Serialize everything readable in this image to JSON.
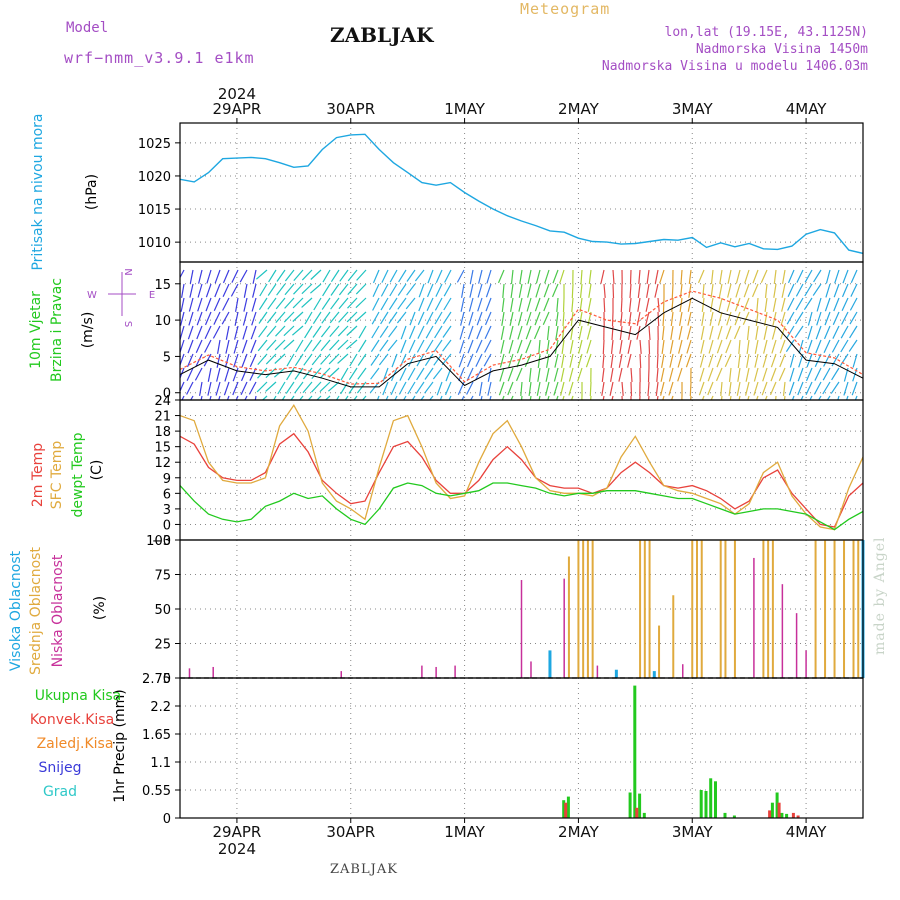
{
  "header": {
    "model_label": "Model",
    "model_name": "wrf−nmm_v3.9.1  e1km",
    "station": "ZABLJAK",
    "product": "Meteogram",
    "location_lines": [
      "lon,lat (19.15E, 43.1125N)",
      "Nadmorska Visina 1450m",
      "Nadmorska Visina u modelu 1406.03m"
    ]
  },
  "footer": {
    "station": "ZABLJAK",
    "watermark": "made by Angel"
  },
  "time_axis": {
    "year": "2024",
    "dates": [
      "29APR",
      "30APR",
      "1MAY",
      "2MAY",
      "3MAY",
      "4MAY"
    ],
    "start": "2024-04-28 12:00",
    "end": "2024-05-04 12:00"
  },
  "colors": {
    "pressure": "#1ea7e1",
    "temp_2m": "#e8423c",
    "sfc_temp": "#e0aa3e",
    "dewpt": "#22c91e",
    "cloud_high": "#1ea7e1",
    "cloud_mid": "#e0aa3e",
    "cloud_low": "#c7309a",
    "precip_total": "#22c91e",
    "precip_conv": "#e8423c",
    "precip_frozen": "#f08a28",
    "snow": "#3a3ad8",
    "grad": "#2fc8c8"
  },
  "chart_data": [
    {
      "type": "line",
      "panel": "pressure",
      "ylabel_lines": [
        "Pritisak na nivou mora",
        "(hPa)"
      ],
      "yticks": [
        "1010",
        "1015",
        "1020",
        "1025"
      ],
      "ylim": [
        1007,
        1028
      ],
      "x": [
        "2024-04-28 12:00",
        "2024-04-28 15:00",
        "2024-04-28 18:00",
        "2024-04-28 21:00",
        "2024-04-29 00:00",
        "2024-04-29 03:00",
        "2024-04-29 06:00",
        "2024-04-29 09:00",
        "2024-04-29 12:00",
        "2024-04-29 15:00",
        "2024-04-29 18:00",
        "2024-04-29 21:00",
        "2024-04-30 00:00",
        "2024-04-30 03:00",
        "2024-04-30 06:00",
        "2024-04-30 09:00",
        "2024-04-30 12:00",
        "2024-04-30 15:00",
        "2024-04-30 18:00",
        "2024-04-30 21:00",
        "2024-05-01 00:00",
        "2024-05-01 03:00",
        "2024-05-01 06:00",
        "2024-05-01 09:00",
        "2024-05-01 12:00",
        "2024-05-01 15:00",
        "2024-05-01 18:00",
        "2024-05-01 21:00",
        "2024-05-02 00:00",
        "2024-05-02 03:00",
        "2024-05-02 06:00",
        "2024-05-02 09:00",
        "2024-05-02 12:00",
        "2024-05-02 15:00",
        "2024-05-02 18:00",
        "2024-05-02 21:00",
        "2024-05-03 00:00",
        "2024-05-03 03:00",
        "2024-05-03 06:00",
        "2024-05-03 09:00",
        "2024-05-03 12:00",
        "2024-05-03 15:00",
        "2024-05-03 18:00",
        "2024-05-03 21:00",
        "2024-05-04 00:00",
        "2024-05-04 03:00",
        "2024-05-04 06:00",
        "2024-05-04 09:00",
        "2024-05-04 12:00"
      ],
      "series": [
        {
          "values": [
            1019.5,
            1019.1,
            1020.5,
            1022.6,
            1022.7,
            1022.8,
            1022.6,
            1022.0,
            1021.3,
            1021.5,
            1024.0,
            1025.8,
            1026.2,
            1026.3,
            1024.0,
            1022.0,
            1020.5,
            1019.0,
            1018.6,
            1019.0,
            1017.5,
            1016.2,
            1015.0,
            1014.0,
            1013.2,
            1012.5,
            1011.7,
            1011.5,
            1010.6,
            1010.1,
            1010.0,
            1009.7,
            1009.8,
            1010.1,
            1010.4,
            1010.3,
            1010.7,
            1009.2,
            1009.9,
            1009.3,
            1009.8,
            1009.0,
            1008.9,
            1009.4,
            1011.2,
            1011.9,
            1011.4,
            1008.8,
            1008.3
          ]
        }
      ]
    },
    {
      "type": "line",
      "panel": "wind",
      "ylabel_lines": [
        "10m Vjetar",
        "Brzina i Pravac",
        "(m/s)"
      ],
      "compass": [
        "N",
        "W",
        "E",
        "S"
      ],
      "yticks": [
        "0",
        "5",
        "10",
        "15"
      ],
      "ylim": [
        -1,
        18
      ],
      "x": [
        "2024-04-28 12:00",
        "2024-04-28 18:00",
        "2024-04-29 00:00",
        "2024-04-29 06:00",
        "2024-04-29 12:00",
        "2024-04-29 18:00",
        "2024-04-30 00:00",
        "2024-04-30 06:00",
        "2024-04-30 12:00",
        "2024-04-30 18:00",
        "2024-05-01 00:00",
        "2024-05-01 06:00",
        "2024-05-01 12:00",
        "2024-05-01 18:00",
        "2024-05-02 00:00",
        "2024-05-02 06:00",
        "2024-05-02 12:00",
        "2024-05-02 18:00",
        "2024-05-03 00:00",
        "2024-05-03 06:00",
        "2024-05-03 12:00",
        "2024-05-03 18:00",
        "2024-05-04 00:00",
        "2024-05-04 06:00",
        "2024-05-04 12:00"
      ],
      "series": [
        {
          "values": [
            2.5,
            4.5,
            3.0,
            2.5,
            3.0,
            2.0,
            0.8,
            0.8,
            4.0,
            5.0,
            1.0,
            3.0,
            3.8,
            5.0,
            10.0,
            9.0,
            8.0,
            11.0,
            13.0,
            11.0,
            10.0,
            9.0,
            4.5,
            4.0,
            2.0
          ]
        },
        {
          "values": [
            3.2,
            5.2,
            3.6,
            3.0,
            3.5,
            2.6,
            1.2,
            1.3,
            4.6,
            5.8,
            1.5,
            3.8,
            4.6,
            6.0,
            11.5,
            10.0,
            9.5,
            12.5,
            14.0,
            13.0,
            11.5,
            10.0,
            5.5,
            4.8,
            2.5
          ]
        }
      ]
    },
    {
      "type": "line",
      "panel": "temperature",
      "ylabel_lines": [
        "2m Temp",
        "SFC Temp",
        "dewpt Temp",
        "(C)"
      ],
      "yticks": [
        "−3",
        "0",
        "3",
        "6",
        "9",
        "12",
        "15",
        "18",
        "21",
        "24"
      ],
      "ylim": [
        -3,
        24
      ],
      "x": [
        "2024-04-28 12:00",
        "2024-04-28 15:00",
        "2024-04-28 18:00",
        "2024-04-28 21:00",
        "2024-04-29 00:00",
        "2024-04-29 03:00",
        "2024-04-29 06:00",
        "2024-04-29 09:00",
        "2024-04-29 12:00",
        "2024-04-29 15:00",
        "2024-04-29 18:00",
        "2024-04-29 21:00",
        "2024-04-30 00:00",
        "2024-04-30 03:00",
        "2024-04-30 06:00",
        "2024-04-30 09:00",
        "2024-04-30 12:00",
        "2024-04-30 15:00",
        "2024-04-30 18:00",
        "2024-04-30 21:00",
        "2024-05-01 00:00",
        "2024-05-01 03:00",
        "2024-05-01 06:00",
        "2024-05-01 09:00",
        "2024-05-01 12:00",
        "2024-05-01 15:00",
        "2024-05-01 18:00",
        "2024-05-01 21:00",
        "2024-05-02 00:00",
        "2024-05-02 03:00",
        "2024-05-02 06:00",
        "2024-05-02 09:00",
        "2024-05-02 12:00",
        "2024-05-02 15:00",
        "2024-05-02 18:00",
        "2024-05-02 21:00",
        "2024-05-03 00:00",
        "2024-05-03 03:00",
        "2024-05-03 06:00",
        "2024-05-03 09:00",
        "2024-05-03 12:00",
        "2024-05-03 15:00",
        "2024-05-03 18:00",
        "2024-05-03 21:00",
        "2024-05-04 00:00",
        "2024-05-04 03:00",
        "2024-05-04 06:00",
        "2024-05-04 09:00",
        "2024-05-04 12:00"
      ],
      "series": [
        {
          "values": [
            17.0,
            15.5,
            11.0,
            9.0,
            8.5,
            8.5,
            10.0,
            15.5,
            17.5,
            14.0,
            8.5,
            6.0,
            4.0,
            4.5,
            10.0,
            15.0,
            16.0,
            13.0,
            8.5,
            6.0,
            6.0,
            8.5,
            12.5,
            15.0,
            12.5,
            9.0,
            7.5,
            7.0,
            7.0,
            6.0,
            7.0,
            10.0,
            12.0,
            10.0,
            7.5,
            7.0,
            7.5,
            6.5,
            5.0,
            3.0,
            4.5,
            9.0,
            10.5,
            6.0,
            3.0,
            0.0,
            -0.5,
            5.5,
            8.0
          ]
        },
        {
          "values": [
            21.0,
            20.0,
            12.0,
            8.5,
            8.0,
            8.0,
            9.0,
            19.0,
            23.0,
            18.0,
            8.0,
            4.5,
            3.0,
            1.0,
            11.0,
            20.0,
            21.0,
            15.0,
            8.0,
            5.0,
            5.5,
            12.0,
            17.5,
            20.0,
            15.0,
            9.0,
            6.5,
            6.0,
            6.0,
            5.5,
            7.0,
            13.0,
            17.0,
            12.0,
            7.5,
            6.5,
            6.0,
            5.0,
            4.0,
            2.0,
            4.0,
            10.0,
            12.0,
            5.5,
            2.0,
            -0.5,
            -1.0,
            7.0,
            13.0
          ]
        },
        {
          "values": [
            7.5,
            4.5,
            2.0,
            1.0,
            0.5,
            1.0,
            3.5,
            4.5,
            6.0,
            5.0,
            5.5,
            3.0,
            1.0,
            0.0,
            3.0,
            7.0,
            8.0,
            7.5,
            6.0,
            5.5,
            6.0,
            6.5,
            8.0,
            8.0,
            7.5,
            7.0,
            6.0,
            5.5,
            6.0,
            6.0,
            6.5,
            6.5,
            6.5,
            6.0,
            5.5,
            5.0,
            5.0,
            4.0,
            3.0,
            2.0,
            2.5,
            3.0,
            3.0,
            2.5,
            2.0,
            0.5,
            -1.0,
            1.0,
            2.5
          ]
        }
      ]
    },
    {
      "type": "bar",
      "panel": "clouds",
      "ylabel_lines": [
        "Visoka Oblacnost",
        "Srednja Oblacnost",
        "Niska  Oblacnost",
        "(%)"
      ],
      "yticks": [
        "0",
        "25",
        "50",
        "75",
        "100"
      ],
      "ylim": [
        0,
        100
      ],
      "series": [
        {
          "name": "Niska Oblacnost",
          "points": [
            [
              "2024-04-28 14:00",
              7
            ],
            [
              "2024-04-28 19:00",
              8
            ],
            [
              "2024-04-29 22:00",
              5
            ],
            [
              "2024-04-30 15:00",
              9
            ],
            [
              "2024-04-30 18:00",
              8
            ],
            [
              "2024-04-30 22:00",
              9
            ],
            [
              "2024-05-01 12:00",
              71
            ],
            [
              "2024-05-01 14:00",
              12
            ],
            [
              "2024-05-01 21:00",
              72
            ],
            [
              "2024-05-02 02:00",
              9
            ],
            [
              "2024-05-02 04:00",
              9
            ],
            [
              "2024-05-02 22:00",
              10
            ],
            [
              "2024-05-03 02:00",
              8
            ],
            [
              "2024-05-03 13:00",
              87
            ],
            [
              "2024-05-03 19:00",
              68
            ],
            [
              "2024-05-03 22:00",
              47
            ],
            [
              "2024-05-04 00:00",
              20
            ]
          ]
        },
        {
          "name": "Srednja Oblacnost",
          "points": [
            [
              "2024-05-01 22:00",
              88
            ],
            [
              "2024-05-02 00:00",
              100
            ],
            [
              "2024-05-02 01:00",
              100
            ],
            [
              "2024-05-02 02:00",
              100
            ],
            [
              "2024-05-02 03:00",
              100
            ],
            [
              "2024-05-02 13:00",
              100
            ],
            [
              "2024-05-02 14:00",
              100
            ],
            [
              "2024-05-02 15:00",
              100
            ],
            [
              "2024-05-02 17:00",
              38
            ],
            [
              "2024-05-02 20:00",
              60
            ],
            [
              "2024-05-03 00:00",
              100
            ],
            [
              "2024-05-03 01:00",
              100
            ],
            [
              "2024-05-03 02:00",
              100
            ],
            [
              "2024-05-03 06:00",
              100
            ],
            [
              "2024-05-03 07:00",
              100
            ],
            [
              "2024-05-03 09:00",
              100
            ],
            [
              "2024-05-03 15:00",
              100
            ],
            [
              "2024-05-03 16:00",
              100
            ],
            [
              "2024-05-03 17:00",
              100
            ],
            [
              "2024-05-04 02:00",
              100
            ],
            [
              "2024-05-04 04:00",
              100
            ],
            [
              "2024-05-04 06:00",
              100
            ],
            [
              "2024-05-04 08:00",
              100
            ],
            [
              "2024-05-04 10:00",
              100
            ],
            [
              "2024-05-04 11:00",
              100
            ],
            [
              "2024-05-04 12:00",
              100
            ]
          ]
        },
        {
          "name": "Visoka Oblacnost",
          "points": [
            [
              "2024-05-01 18:00",
              20
            ],
            [
              "2024-05-02 08:00",
              6
            ],
            [
              "2024-05-02 16:00",
              5
            ],
            [
              "2024-05-04 12:00",
              100
            ]
          ]
        }
      ]
    },
    {
      "type": "bar",
      "panel": "precipitation",
      "ylabel_lines": [
        "1hr Precip (mm)"
      ],
      "legend": [
        "Ukupna  Kisa",
        "Konvek.Kisa",
        "Zaledj.Kisa",
        "Snijeg",
        "Grad"
      ],
      "yticks": [
        "0",
        "0.55",
        "1.1",
        "1.65",
        "2.2",
        "2.75"
      ],
      "ylim": [
        0,
        2.75
      ],
      "series": [
        {
          "name": "Ukupna  Kisa",
          "points": [
            [
              "2024-05-01 21:00",
              0.35
            ],
            [
              "2024-05-01 22:00",
              0.42
            ],
            [
              "2024-05-02 11:00",
              0.5
            ],
            [
              "2024-05-02 12:00",
              2.6
            ],
            [
              "2024-05-02 13:00",
              0.48
            ],
            [
              "2024-05-02 14:00",
              0.1
            ],
            [
              "2024-05-03 02:00",
              0.55
            ],
            [
              "2024-05-03 03:00",
              0.53
            ],
            [
              "2024-05-03 04:00",
              0.78
            ],
            [
              "2024-05-03 05:00",
              0.72
            ],
            [
              "2024-05-03 07:00",
              0.1
            ],
            [
              "2024-05-03 09:00",
              0.05
            ],
            [
              "2024-05-03 17:00",
              0.3
            ],
            [
              "2024-05-03 18:00",
              0.5
            ],
            [
              "2024-05-03 19:00",
              0.1
            ],
            [
              "2024-05-03 20:00",
              0.08
            ]
          ]
        },
        {
          "name": "Konvek.Kisa",
          "points": [
            [
              "2024-05-01 21:00",
              0.3
            ],
            [
              "2024-05-02 12:00",
              0.2
            ],
            [
              "2024-05-03 16:00",
              0.15
            ],
            [
              "2024-05-03 18:00",
              0.3
            ],
            [
              "2024-05-03 21:00",
              0.1
            ],
            [
              "2024-05-03 22:00",
              0.05
            ]
          ]
        }
      ]
    }
  ]
}
